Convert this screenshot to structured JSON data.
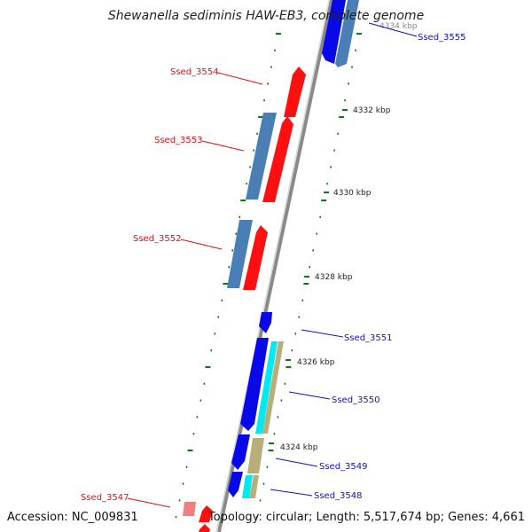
{
  "title": "Shewanella sediminis HAW-EB3, complete genome",
  "footer": {
    "accession": "Accession: NC_009831",
    "summary": "Topology: circular; Length: 5,517,674 bp; Genes: 4,661"
  },
  "kbp_labels": [
    "4332 kbp",
    "4330 kbp",
    "4328 kbp",
    "4326 kbp",
    "4324 kbp"
  ],
  "partial_kbp_label": "4334 kbp",
  "labels_left": [
    "Ssed_3554",
    "Ssed_3553",
    "Ssed_3552",
    "Ssed_3547"
  ],
  "labels_right": [
    "Ssed_3555",
    "Ssed_3551",
    "Ssed_3550",
    "Ssed_3549",
    "Ssed_3548"
  ],
  "colors": {
    "red": "#ff1010",
    "light_red": "#f08080",
    "steel": "#4a7fb5",
    "blue": "#0808e8",
    "cyan": "#00e8f0",
    "khaki": "#b8ae78",
    "backbone": "#8a8a8a",
    "tick": "#0a7a0a",
    "label_red": "#e01010",
    "label_blue": "#1010c8"
  }
}
